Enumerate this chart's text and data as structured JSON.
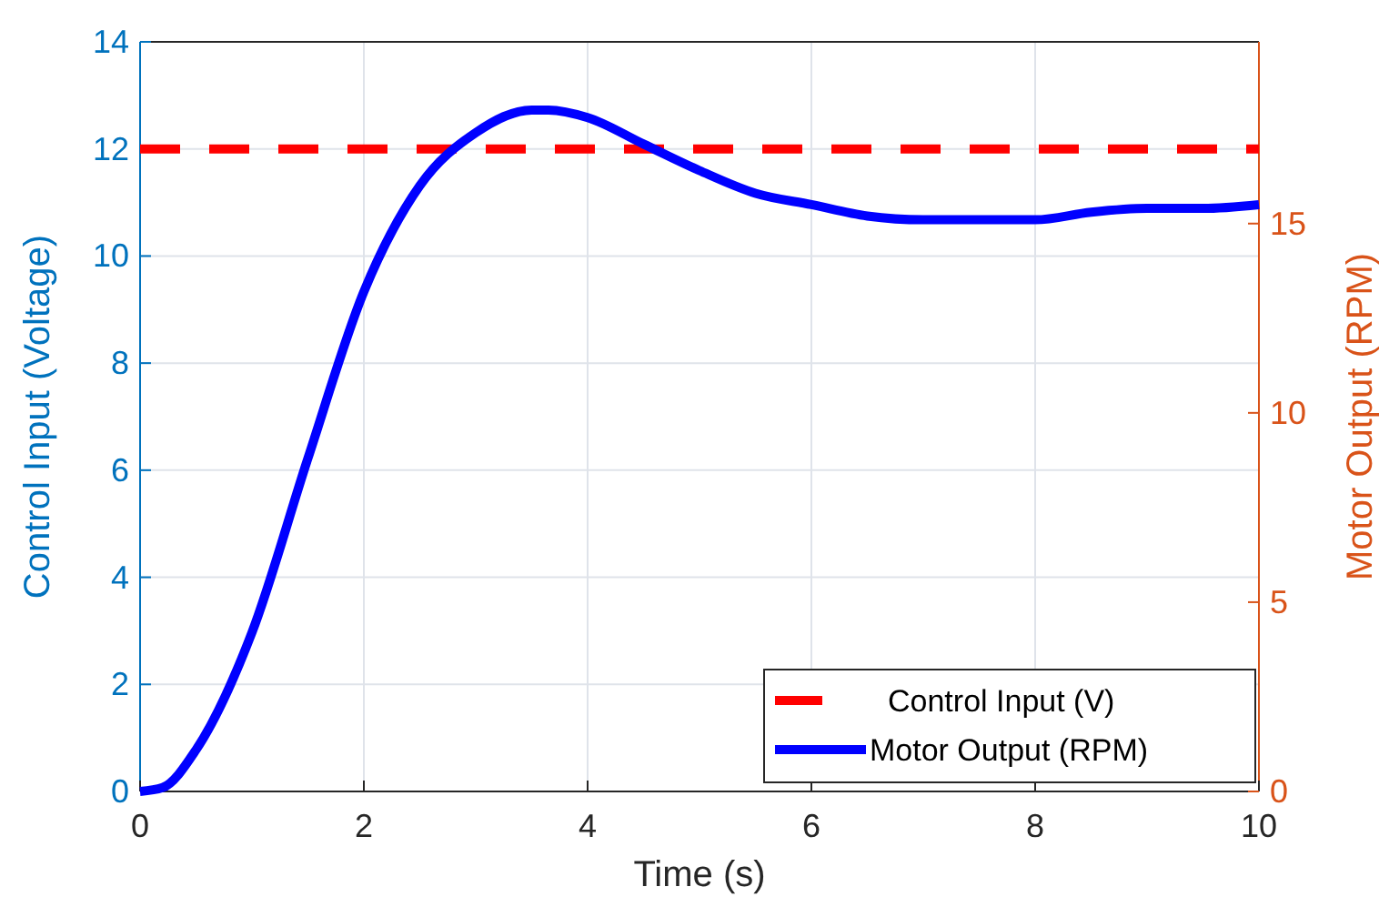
{
  "chart_data": {
    "type": "line",
    "xlabel": "Time (s)",
    "ylabel": "Control Input (Voltage)",
    "y2label": "Motor Output (RPM)",
    "xlim": [
      0,
      10
    ],
    "xticks": [
      0,
      2,
      4,
      6,
      8,
      10
    ],
    "ylim": [
      0,
      14
    ],
    "yticks": [
      0,
      2,
      4,
      6,
      8,
      10,
      12,
      14
    ],
    "y2lim": [
      0,
      19.8
    ],
    "y2ticks": [
      0,
      5,
      10,
      15
    ],
    "grid": true,
    "legend": "bottom right",
    "series": [
      {
        "name": "Control Input (V)",
        "color": "#ff0000",
        "line_style": "dashed",
        "x": [
          0,
          10
        ],
        "values": [
          12,
          12
        ]
      },
      {
        "name": "Motor Output (RPM)",
        "color": "#0000ff",
        "line_style": "solid",
        "axis": "y2",
        "x": [
          0,
          0.2,
          0.5,
          1,
          1.5,
          2,
          2.5,
          3,
          3.5,
          3.65,
          4,
          4.5,
          5,
          5.5,
          6,
          6.5,
          7,
          7.5,
          8,
          8.5,
          9,
          9.5,
          10
        ],
        "values": [
          0,
          0.1,
          1.1,
          4.2,
          8.8,
          13.2,
          16,
          17.4,
          18,
          18,
          17.8,
          17.1,
          16.4,
          15.8,
          15.5,
          15.2,
          15.1,
          15.1,
          15.1,
          15.3,
          15.4,
          15.4,
          15.5
        ]
      }
    ]
  }
}
